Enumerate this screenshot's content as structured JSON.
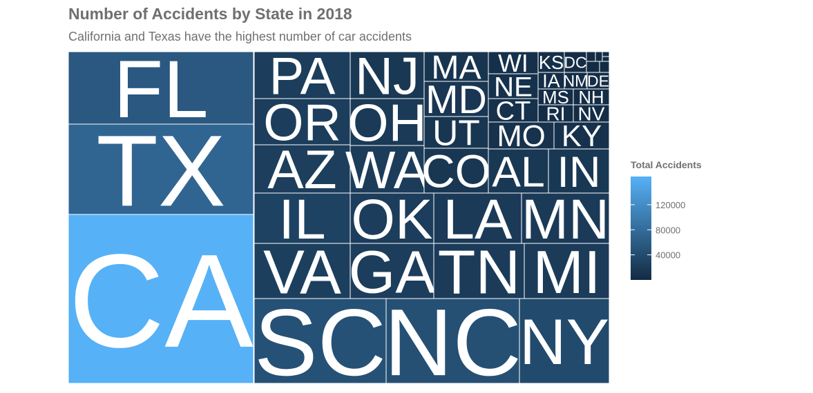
{
  "chart_data": {
    "type": "treemap",
    "title": "Number of Accidents by State in 2018",
    "subtitle": "California and Texas have the highest number of car accidents",
    "legend": {
      "title": "Total Accidents",
      "ticks": [
        120000,
        80000,
        40000
      ],
      "tick_labels": [
        "120000",
        "80000",
        "40000"
      ],
      "placement": "right",
      "min": 0,
      "max": 165000,
      "low_color": "#132b43",
      "high_color": "#56b1f7"
    },
    "grid": false,
    "items": [
      {
        "label": "CA",
        "value": 165000
      },
      {
        "label": "TX",
        "value": 72000
      },
      {
        "label": "FL",
        "value": 56000
      },
      {
        "label": "SC",
        "value": 47000
      },
      {
        "label": "NC",
        "value": 45000
      },
      {
        "label": "NY",
        "value": 38000
      },
      {
        "label": "IL",
        "value": 28000
      },
      {
        "label": "VA",
        "value": 25000
      },
      {
        "label": "AZ",
        "value": 24000
      },
      {
        "label": "OR",
        "value": 23000
      },
      {
        "label": "PA",
        "value": 23000
      },
      {
        "label": "GA",
        "value": 22000
      },
      {
        "label": "OK",
        "value": 22000
      },
      {
        "label": "WA",
        "value": 21000
      },
      {
        "label": "TN",
        "value": 20000
      },
      {
        "label": "MI",
        "value": 20000
      },
      {
        "label": "LA",
        "value": 19000
      },
      {
        "label": "MN",
        "value": 19000
      },
      {
        "label": "OH",
        "value": 18000
      },
      {
        "label": "NJ",
        "value": 16000
      },
      {
        "label": "AL",
        "value": 16000
      },
      {
        "label": "IN",
        "value": 16000
      },
      {
        "label": "CO",
        "value": 15000
      },
      {
        "label": "MD",
        "value": 14000
      },
      {
        "label": "UT",
        "value": 13000
      },
      {
        "label": "MA",
        "value": 12000
      },
      {
        "label": "MO",
        "value": 9000
      },
      {
        "label": "KY",
        "value": 8000
      },
      {
        "label": "NE",
        "value": 8000
      },
      {
        "label": "CT",
        "value": 7000
      },
      {
        "label": "WI",
        "value": 6000
      },
      {
        "label": "KS",
        "value": 5000
      },
      {
        "label": "IA",
        "value": 4000
      },
      {
        "label": "NM",
        "value": 3500
      },
      {
        "label": "DE",
        "value": 3000
      },
      {
        "label": "RI",
        "value": 3000
      },
      {
        "label": "NV",
        "value": 3000
      },
      {
        "label": "MS",
        "value": 3000
      },
      {
        "label": "NH",
        "value": 3000
      },
      {
        "label": "DC",
        "value": 1800
      }
    ]
  }
}
